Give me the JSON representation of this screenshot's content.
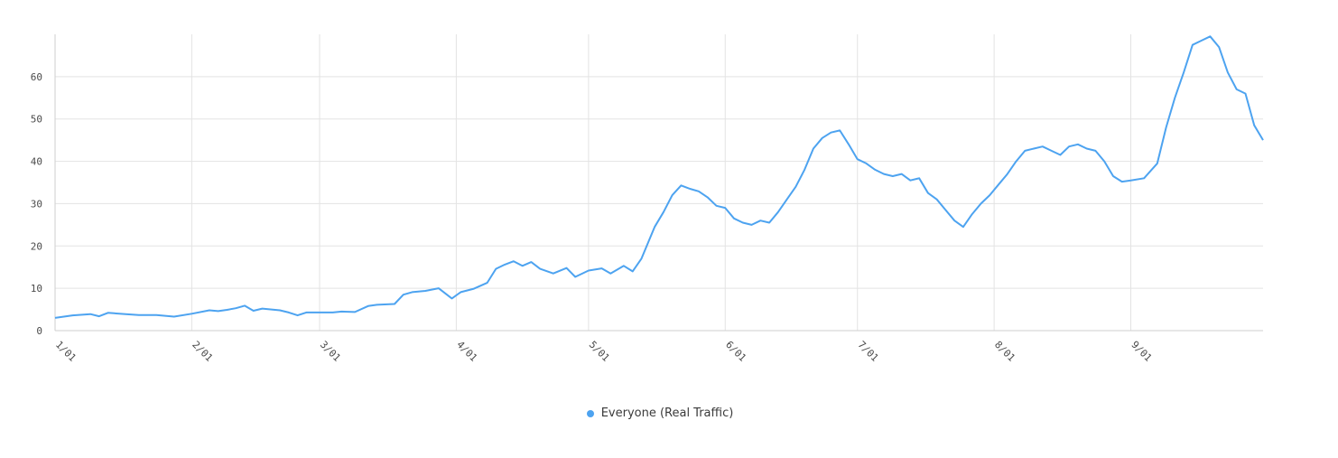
{
  "chart_data": {
    "type": "line",
    "title": "",
    "xlabel": "",
    "ylabel": "",
    "ylim": [
      0,
      70
    ],
    "yticks": [
      0,
      10,
      20,
      30,
      40,
      50,
      60
    ],
    "grid": true,
    "legend_position": "bottom-center",
    "xtick_labels": [
      "1/01",
      "2/01",
      "3/01",
      "4/01",
      "5/01",
      "6/01",
      "7/01",
      "8/01",
      "9/01"
    ],
    "series": [
      {
        "name": "Everyone (Real Traffic)",
        "color": "#4da3f0",
        "points": [
          [
            "1/01",
            3.0
          ],
          [
            "1/05",
            3.6
          ],
          [
            "1/09",
            3.9
          ],
          [
            "1/11",
            3.4
          ],
          [
            "1/13",
            4.2
          ],
          [
            "1/17",
            3.9
          ],
          [
            "1/20",
            3.7
          ],
          [
            "1/24",
            3.7
          ],
          [
            "1/28",
            3.3
          ],
          [
            "2/01",
            4.0
          ],
          [
            "2/05",
            4.8
          ],
          [
            "2/07",
            4.6
          ],
          [
            "2/09",
            4.9
          ],
          [
            "2/11",
            5.3
          ],
          [
            "2/13",
            5.9
          ],
          [
            "2/15",
            4.7
          ],
          [
            "2/17",
            5.2
          ],
          [
            "2/21",
            4.8
          ],
          [
            "2/23",
            4.3
          ],
          [
            "2/25",
            3.6
          ],
          [
            "2/27",
            4.3
          ],
          [
            "3/01",
            4.3
          ],
          [
            "3/04",
            4.3
          ],
          [
            "3/06",
            4.5
          ],
          [
            "3/09",
            4.4
          ],
          [
            "3/12",
            5.8
          ],
          [
            "3/14",
            6.1
          ],
          [
            "3/18",
            6.3
          ],
          [
            "3/20",
            8.5
          ],
          [
            "3/22",
            9.1
          ],
          [
            "3/25",
            9.4
          ],
          [
            "3/28",
            10.0
          ],
          [
            "3/31",
            7.6
          ],
          [
            "4/02",
            9.1
          ],
          [
            "4/05",
            9.9
          ],
          [
            "4/08",
            11.3
          ],
          [
            "4/10",
            14.6
          ],
          [
            "4/12",
            15.6
          ],
          [
            "4/14",
            16.4
          ],
          [
            "4/16",
            15.3
          ],
          [
            "4/18",
            16.2
          ],
          [
            "4/20",
            14.6
          ],
          [
            "4/23",
            13.5
          ],
          [
            "4/26",
            14.8
          ],
          [
            "4/28",
            12.7
          ],
          [
            "5/01",
            14.2
          ],
          [
            "5/04",
            14.7
          ],
          [
            "5/06",
            13.5
          ],
          [
            "5/09",
            15.3
          ],
          [
            "5/11",
            14.0
          ],
          [
            "5/13",
            17.0
          ],
          [
            "5/16",
            24.5
          ],
          [
            "5/18",
            28.0
          ],
          [
            "5/20",
            32.0
          ],
          [
            "5/22",
            34.3
          ],
          [
            "5/24",
            33.5
          ],
          [
            "5/26",
            32.9
          ],
          [
            "5/28",
            31.5
          ],
          [
            "5/30",
            29.5
          ],
          [
            "6/01",
            29.0
          ],
          [
            "6/03",
            26.5
          ],
          [
            "6/05",
            25.5
          ],
          [
            "6/07",
            25.0
          ],
          [
            "6/09",
            26.0
          ],
          [
            "6/11",
            25.5
          ],
          [
            "6/13",
            28.0
          ],
          [
            "6/15",
            31.0
          ],
          [
            "6/17",
            34.0
          ],
          [
            "6/19",
            38.0
          ],
          [
            "6/21",
            43.0
          ],
          [
            "6/23",
            45.5
          ],
          [
            "6/25",
            46.8
          ],
          [
            "6/27",
            47.3
          ],
          [
            "6/29",
            44.0
          ],
          [
            "7/01",
            40.5
          ],
          [
            "7/03",
            39.5
          ],
          [
            "7/05",
            38.0
          ],
          [
            "7/07",
            37.0
          ],
          [
            "7/09",
            36.5
          ],
          [
            "7/11",
            37.0
          ],
          [
            "7/13",
            35.5
          ],
          [
            "7/15",
            36.0
          ],
          [
            "7/17",
            32.5
          ],
          [
            "7/19",
            31.0
          ],
          [
            "7/21",
            28.5
          ],
          [
            "7/23",
            26.0
          ],
          [
            "7/25",
            24.5
          ],
          [
            "7/27",
            27.5
          ],
          [
            "7/29",
            30.0
          ],
          [
            "7/31",
            32.0
          ],
          [
            "8/02",
            34.5
          ],
          [
            "8/04",
            37.0
          ],
          [
            "8/06",
            40.0
          ],
          [
            "8/08",
            42.5
          ],
          [
            "8/10",
            43.0
          ],
          [
            "8/12",
            43.5
          ],
          [
            "8/14",
            42.5
          ],
          [
            "8/16",
            41.5
          ],
          [
            "8/18",
            43.5
          ],
          [
            "8/20",
            44.0
          ],
          [
            "8/22",
            43.0
          ],
          [
            "8/24",
            42.5
          ],
          [
            "8/26",
            40.0
          ],
          [
            "8/28",
            36.5
          ],
          [
            "8/30",
            35.2
          ],
          [
            "9/01",
            35.5
          ],
          [
            "9/04",
            36.0
          ],
          [
            "9/07",
            39.5
          ],
          [
            "9/09",
            48.0
          ],
          [
            "9/11",
            55.0
          ],
          [
            "9/13",
            61.0
          ],
          [
            "9/15",
            67.5
          ],
          [
            "9/17",
            68.5
          ],
          [
            "9/19",
            69.5
          ],
          [
            "9/21",
            67.0
          ],
          [
            "9/23",
            61.0
          ],
          [
            "9/25",
            57.0
          ],
          [
            "9/27",
            56.0
          ],
          [
            "9/29",
            48.5
          ],
          [
            "10/01",
            45.0
          ]
        ]
      }
    ]
  },
  "legend": {
    "items": [
      {
        "label": "Everyone (Real Traffic)",
        "color": "#4da3f0"
      }
    ]
  }
}
